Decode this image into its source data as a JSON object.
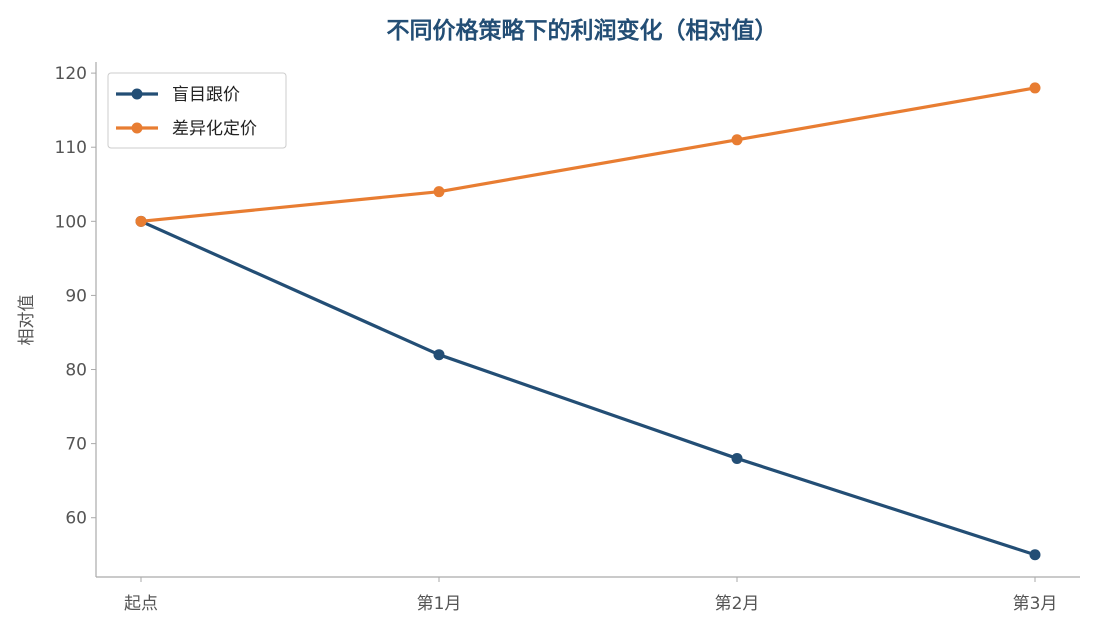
{
  "chart_data": {
    "type": "line",
    "title": "不同价格策略下的利润变化（相对值）",
    "xlabel": "",
    "ylabel": "相对值",
    "categories": [
      "起点",
      "第1月",
      "第2月",
      "第3月"
    ],
    "ylim": [
      52,
      121.5
    ],
    "yticks": [
      60,
      70,
      80,
      90,
      100,
      110,
      120
    ],
    "grid": false,
    "legend_position": "top-left",
    "series": [
      {
        "name": "盲目跟价",
        "values": [
          100,
          82,
          68,
          55
        ],
        "color": "#234e75"
      },
      {
        "name": "差异化定价",
        "values": [
          100,
          104,
          111,
          118
        ],
        "color": "#e87d32"
      }
    ],
    "title_color": "#234e75"
  }
}
